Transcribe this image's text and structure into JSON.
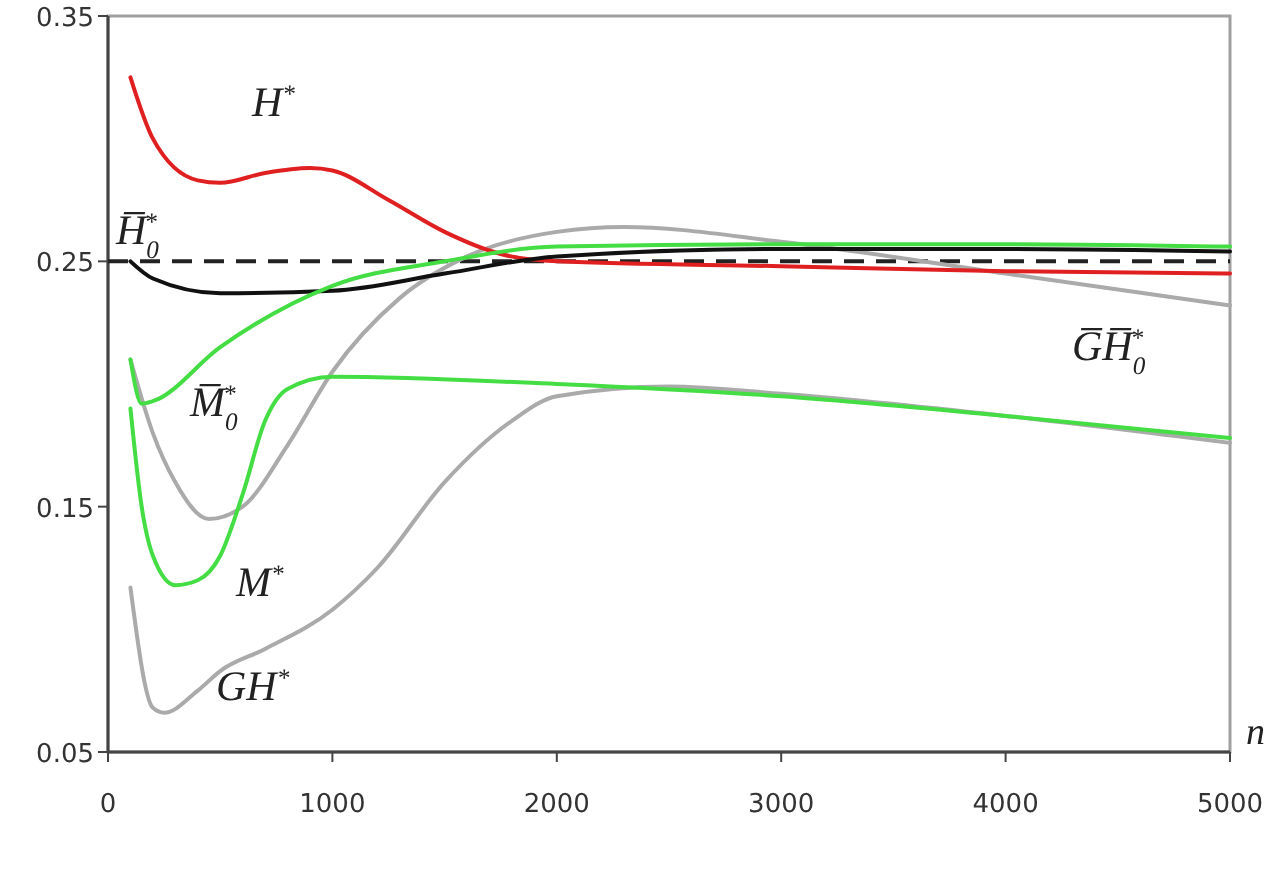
{
  "chart_data": {
    "type": "line",
    "xlabel": "n",
    "xlim": [
      0,
      5000
    ],
    "xticks": [
      0,
      1000,
      2000,
      3000,
      4000,
      5000
    ],
    "ylim": [
      0.05,
      0.35
    ],
    "yticks": [
      0.05,
      0.15,
      0.25,
      0.35
    ],
    "grid": false,
    "marker": "none",
    "line_style": "solid",
    "series": [
      {
        "name": "G̅H̅$_{0}$$^{*}$",
        "color": "#aaaaaa",
        "x": [
          100,
          200,
          300,
          450,
          600,
          800,
          1000,
          1300,
          1600,
          2000,
          2300,
          3000,
          4000,
          5000
        ],
        "values": [
          0.21,
          0.18,
          0.16,
          0.145,
          0.15,
          0.175,
          0.205,
          0.235,
          0.252,
          0.262,
          0.264,
          0.258,
          0.245,
          0.232
        ]
      },
      {
        "name": "H$^{*}$",
        "color": "#e02020",
        "x": [
          100,
          200,
          400,
          500,
          700,
          900,
          1000,
          1250,
          1500,
          1750,
          2000,
          3000,
          4000,
          5000
        ],
        "values": [
          0.325,
          0.3,
          0.283,
          0.282,
          0.286,
          0.288,
          0.287,
          0.275,
          0.262,
          0.253,
          0.25,
          0.248,
          0.246,
          0.245
        ]
      },
      {
        "name": "H̅$_{0}$$^{*}$",
        "color": "#111111",
        "x": [
          100,
          200,
          500,
          1000,
          1500,
          2000,
          3000,
          4000,
          5000
        ],
        "values": [
          0.25,
          0.243,
          0.237,
          0.238,
          0.245,
          0.252,
          0.255,
          0.255,
          0.254
        ]
      },
      {
        "name": "M̅$_{0}$$^{*}$",
        "color": "#44dd44",
        "x": [
          100,
          150,
          200,
          500,
          1000,
          1500,
          2000,
          3000,
          4000,
          5000
        ],
        "values": [
          0.21,
          0.192,
          0.193,
          0.215,
          0.24,
          0.25,
          0.256,
          0.257,
          0.257,
          0.256
        ]
      },
      {
        "name": "GH$^{*}$",
        "color": "#aaaaaa",
        "x": [
          100,
          200,
          250,
          400,
          500,
          700,
          1000,
          1200,
          1500,
          1800,
          2000,
          2500,
          3000,
          4000,
          5000
        ],
        "values": [
          0.117,
          0.068,
          0.066,
          0.075,
          0.083,
          0.092,
          0.108,
          0.125,
          0.16,
          0.185,
          0.195,
          0.199,
          0.196,
          0.187,
          0.176
        ]
      },
      {
        "name": "M$^{*}$",
        "color": "#44dd44",
        "x": [
          100,
          150,
          200,
          300,
          400,
          500,
          600,
          700,
          800,
          1000,
          2000,
          3000,
          4000,
          5000
        ],
        "values": [
          0.19,
          0.15,
          0.13,
          0.118,
          0.12,
          0.13,
          0.155,
          0.185,
          0.198,
          0.203,
          0.2,
          0.195,
          0.187,
          0.178
        ]
      }
    ],
    "ref_lines": [
      {
        "axis": "y",
        "value": 0.25,
        "color": "#222222",
        "line_style": "dashed"
      }
    ]
  }
}
